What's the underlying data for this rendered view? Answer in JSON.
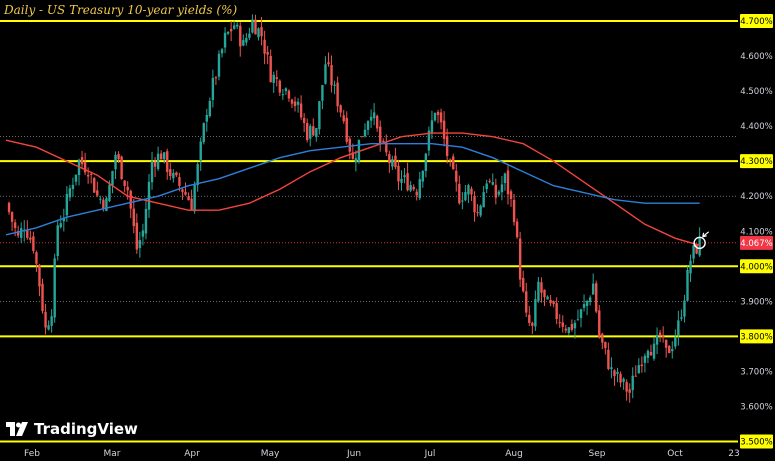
{
  "title": "Daily - US Treasury 10-year yields (%)",
  "logo": {
    "text": "TradingView",
    "icon": "tradingview-logo-icon"
  },
  "colors": {
    "background": "#000000",
    "up": "#26a69a",
    "down": "#ef5350",
    "level_line": "#ffff00",
    "ma_fast": "#f2453d",
    "ma_slow": "#2e7fd9",
    "grid_dotted": "#8a8a8a",
    "axis_text": "#d1d4dc",
    "price_badge": "#f23645"
  },
  "chart_data": {
    "type": "candlestick",
    "title": "Daily - US Treasury 10-year yields (%)",
    "ylim": [
      3.49,
      4.76
    ],
    "x_ticks": [
      "Feb",
      "Mar",
      "Apr",
      "May",
      "Jun",
      "Jul",
      "Aug",
      "Sep",
      "Oct",
      "23"
    ],
    "y_ticks": [
      "4.700%",
      "4.600%",
      "4.500%",
      "4.400%",
      "4.300%",
      "4.200%",
      "4.100%",
      "4.067%",
      "4.000%",
      "3.900%",
      "3.800%",
      "3.700%",
      "3.600%",
      "3.500%"
    ],
    "last_price": {
      "value": 4.067,
      "label": "4.067%"
    },
    "horizontal_levels": [
      4.7,
      4.3,
      4.0,
      3.8,
      3.5
    ],
    "dotted_levels": [
      4.37,
      4.2,
      3.9
    ],
    "close_path": [
      [
        0,
        4.18
      ],
      [
        4,
        4.08
      ],
      [
        6,
        4.12
      ],
      [
        9,
        4.06
      ],
      [
        11,
        3.95
      ],
      [
        13,
        3.82
      ],
      [
        15,
        3.88
      ],
      [
        17,
        4.12
      ],
      [
        19,
        4.15
      ],
      [
        21,
        4.22
      ],
      [
        24,
        4.3
      ],
      [
        27,
        4.28
      ],
      [
        30,
        4.2
      ],
      [
        33,
        4.18
      ],
      [
        36,
        4.32
      ],
      [
        40,
        4.22
      ],
      [
        43,
        4.05
      ],
      [
        45,
        4.1
      ],
      [
        48,
        4.3
      ],
      [
        51,
        4.32
      ],
      [
        55,
        4.25
      ],
      [
        58,
        4.22
      ],
      [
        61,
        4.18
      ],
      [
        63,
        4.28
      ],
      [
        66,
        4.45
      ],
      [
        69,
        4.55
      ],
      [
        72,
        4.65
      ],
      [
        75,
        4.69
      ],
      [
        78,
        4.63
      ],
      [
        81,
        4.7
      ],
      [
        84,
        4.66
      ],
      [
        87,
        4.55
      ],
      [
        90,
        4.52
      ],
      [
        93,
        4.5
      ],
      [
        96,
        4.45
      ],
      [
        99,
        4.38
      ],
      [
        102,
        4.4
      ],
      [
        105,
        4.58
      ],
      [
        108,
        4.5
      ],
      [
        111,
        4.42
      ],
      [
        114,
        4.3
      ],
      [
        117,
        4.38
      ],
      [
        120,
        4.45
      ],
      [
        123,
        4.35
      ],
      [
        126,
        4.3
      ],
      [
        129,
        4.25
      ],
      [
        132,
        4.24
      ],
      [
        135,
        4.22
      ],
      [
        138,
        4.33
      ],
      [
        141,
        4.45
      ],
      [
        143,
        4.4
      ],
      [
        146,
        4.28
      ],
      [
        149,
        4.2
      ],
      [
        152,
        4.22
      ],
      [
        155,
        4.15
      ],
      [
        158,
        4.25
      ],
      [
        161,
        4.2
      ],
      [
        164,
        4.25
      ],
      [
        167,
        4.15
      ],
      [
        169,
        3.98
      ],
      [
        171,
        3.85
      ],
      [
        173,
        3.82
      ],
      [
        175,
        3.95
      ],
      [
        177,
        3.9
      ],
      [
        179,
        3.88
      ],
      [
        182,
        3.85
      ],
      [
        185,
        3.82
      ],
      [
        188,
        3.85
      ],
      [
        191,
        3.9
      ],
      [
        193,
        3.95
      ],
      [
        195,
        3.8
      ],
      [
        197,
        3.75
      ],
      [
        199,
        3.7
      ],
      [
        201,
        3.68
      ],
      [
        203,
        3.66
      ],
      [
        205,
        3.64
      ],
      [
        207,
        3.7
      ],
      [
        209,
        3.74
      ],
      [
        211,
        3.78
      ],
      [
        213,
        3.76
      ],
      [
        215,
        3.8
      ],
      [
        217,
        3.75
      ],
      [
        219,
        3.78
      ],
      [
        221,
        3.83
      ],
      [
        223,
        3.92
      ],
      [
        225,
        4.02
      ],
      [
        226,
        4.04
      ],
      [
        228,
        4.067
      ]
    ],
    "series": [
      {
        "name": "",
        "type": "moving-average",
        "color": "#f2453d",
        "points": [
          [
            0,
            4.36
          ],
          [
            10,
            4.34
          ],
          [
            20,
            4.3
          ],
          [
            30,
            4.26
          ],
          [
            40,
            4.2
          ],
          [
            50,
            4.18
          ],
          [
            60,
            4.16
          ],
          [
            70,
            4.16
          ],
          [
            80,
            4.18
          ],
          [
            90,
            4.22
          ],
          [
            100,
            4.27
          ],
          [
            110,
            4.31
          ],
          [
            120,
            4.34
          ],
          [
            130,
            4.37
          ],
          [
            140,
            4.38
          ],
          [
            150,
            4.38
          ],
          [
            160,
            4.37
          ],
          [
            170,
            4.35
          ],
          [
            180,
            4.3
          ],
          [
            190,
            4.24
          ],
          [
            200,
            4.18
          ],
          [
            210,
            4.12
          ],
          [
            220,
            4.08
          ],
          [
            228,
            4.06
          ]
        ]
      },
      {
        "name": "",
        "type": "moving-average",
        "color": "#2e7fd9",
        "points": [
          [
            0,
            4.09
          ],
          [
            10,
            4.11
          ],
          [
            20,
            4.14
          ],
          [
            30,
            4.16
          ],
          [
            40,
            4.18
          ],
          [
            50,
            4.2
          ],
          [
            60,
            4.23
          ],
          [
            70,
            4.25
          ],
          [
            80,
            4.28
          ],
          [
            90,
            4.31
          ],
          [
            100,
            4.33
          ],
          [
            110,
            4.34
          ],
          [
            120,
            4.35
          ],
          [
            130,
            4.35
          ],
          [
            140,
            4.35
          ],
          [
            150,
            4.34
          ],
          [
            160,
            4.31
          ],
          [
            170,
            4.27
          ],
          [
            180,
            4.23
          ],
          [
            190,
            4.21
          ],
          [
            200,
            4.19
          ],
          [
            210,
            4.18
          ],
          [
            220,
            4.18
          ],
          [
            228,
            4.18
          ]
        ]
      }
    ],
    "annotations": [
      {
        "type": "circle-marker",
        "at": [
          228,
          4.067
        ]
      }
    ],
    "grid": false,
    "legend": "none"
  }
}
